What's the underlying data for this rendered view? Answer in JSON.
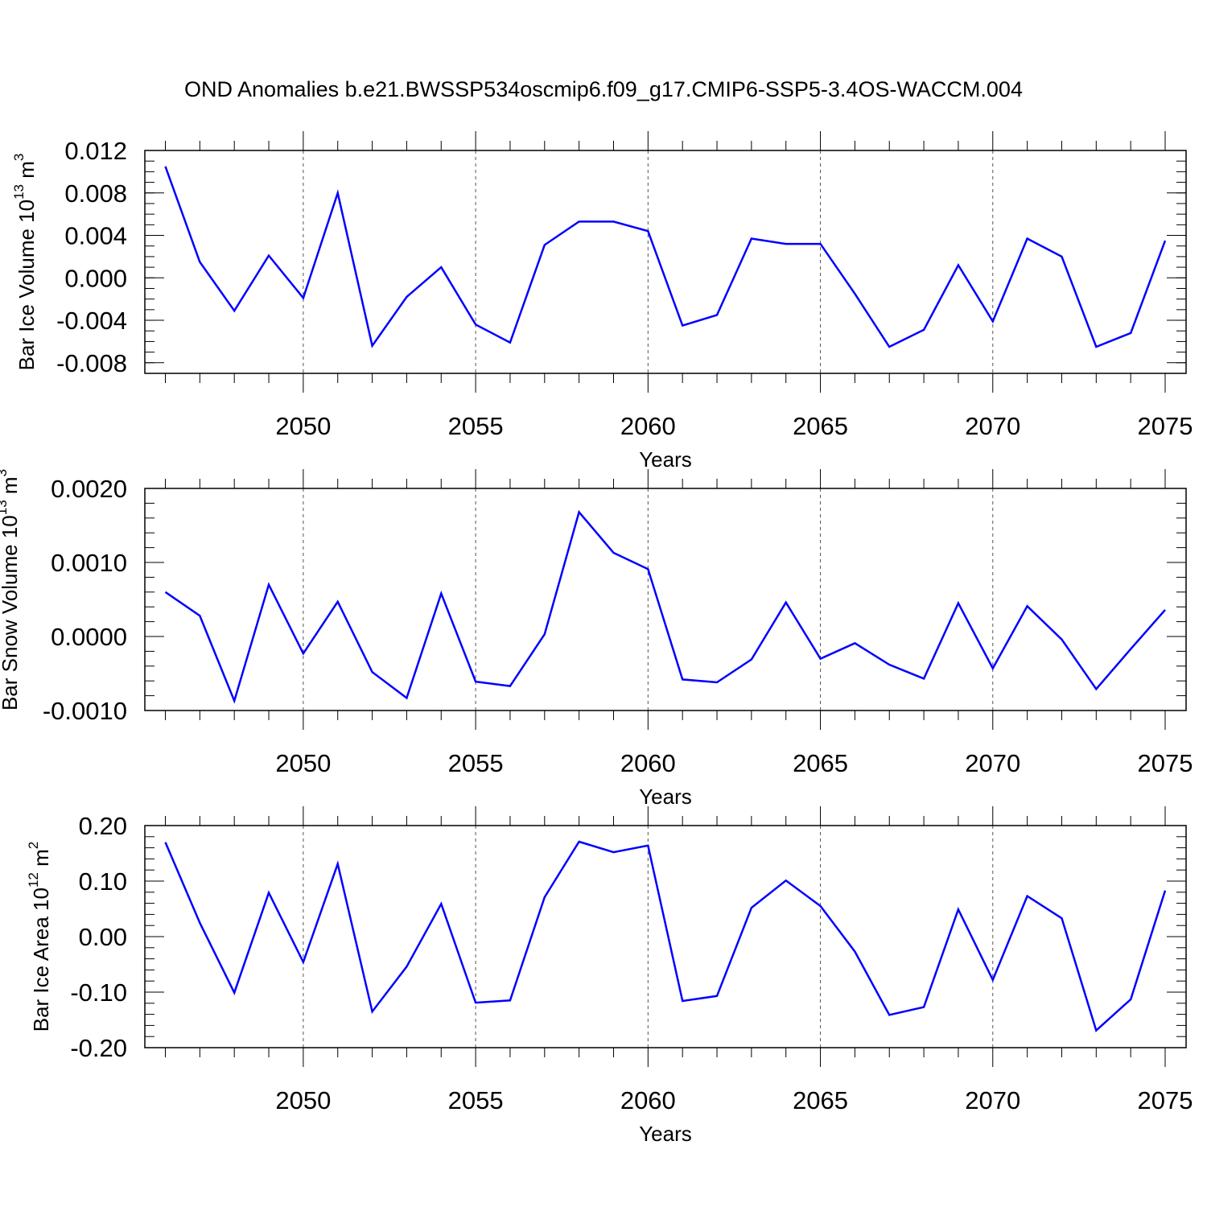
{
  "figure": {
    "title": "OND Anomalies b.e21.BWSSP534oscmip6.f09_g17.CMIP6-SSP5-3.4OS-WACCM.004",
    "line_color": "#0000ff"
  },
  "chart_data": [
    {
      "type": "line",
      "title": "",
      "xlabel": "Years",
      "ylabel": "Bar Ice Volume 10",
      "ylabel_exp": "13",
      "ylabel_unit": " m",
      "ylabel_unit_exp": "3",
      "xlim": [
        2046,
        2075
      ],
      "ylim": [
        -0.009,
        0.012
      ],
      "x_ticks": [
        2050,
        2055,
        2060,
        2065,
        2070,
        2075
      ],
      "x_tick_labels": [
        "2050",
        "2055",
        "2060",
        "2065",
        "2070",
        "2075"
      ],
      "y_ticks": [
        -0.008,
        -0.004,
        0.0,
        0.004,
        0.008,
        0.012
      ],
      "y_tick_labels": [
        "-0.008",
        "-0.004",
        "0.000",
        "0.004",
        "0.008",
        "0.012"
      ],
      "y_minor_step": 0.001,
      "grid": "vertical-dashed",
      "series": [
        {
          "name": "Bar Ice Volume",
          "x": [
            2046,
            2047,
            2048,
            2049,
            2050,
            2051,
            2052,
            2053,
            2054,
            2055,
            2056,
            2057,
            2058,
            2059,
            2060,
            2061,
            2062,
            2063,
            2064,
            2065,
            2066,
            2067,
            2068,
            2069,
            2070,
            2071,
            2072,
            2073,
            2074,
            2075
          ],
          "values": [
            0.0105,
            0.0015,
            -0.0031,
            0.0021,
            -0.0019,
            0.008,
            -0.0064,
            -0.0018,
            0.001,
            -0.0044,
            -0.0061,
            0.0031,
            0.0053,
            0.0053,
            0.0044,
            -0.0045,
            -0.0035,
            0.0037,
            0.0032,
            0.0032,
            -0.0015,
            -0.0065,
            -0.0049,
            0.0012,
            -0.0041,
            0.0037,
            0.002,
            -0.0065,
            -0.0052,
            0.0035
          ]
        }
      ]
    },
    {
      "type": "line",
      "title": "",
      "xlabel": "Years",
      "ylabel": "Bar Snow Volume 10",
      "ylabel_exp": "13",
      "ylabel_unit": " m",
      "ylabel_unit_exp": "3",
      "xlim": [
        2046,
        2075
      ],
      "ylim": [
        -0.001,
        0.002
      ],
      "x_ticks": [
        2050,
        2055,
        2060,
        2065,
        2070,
        2075
      ],
      "x_tick_labels": [
        "2050",
        "2055",
        "2060",
        "2065",
        "2070",
        "2075"
      ],
      "y_ticks": [
        -0.001,
        0.0,
        0.001,
        0.002
      ],
      "y_tick_labels": [
        "-0.0010",
        "0.0000",
        "0.0010",
        "0.0020"
      ],
      "y_minor_step": 0.0002,
      "grid": "vertical-dashed",
      "series": [
        {
          "name": "Bar Snow Volume",
          "x": [
            2046,
            2047,
            2048,
            2049,
            2050,
            2051,
            2052,
            2053,
            2054,
            2055,
            2056,
            2057,
            2058,
            2059,
            2060,
            2061,
            2062,
            2063,
            2064,
            2065,
            2066,
            2067,
            2068,
            2069,
            2070,
            2071,
            2072,
            2073,
            2074,
            2075
          ],
          "values": [
            0.0006,
            0.00028,
            -0.00087,
            0.0007,
            -0.00023,
            0.00047,
            -0.00048,
            -0.00083,
            0.00058,
            -0.00061,
            -0.00067,
            3e-05,
            0.00168,
            0.00113,
            0.00091,
            -0.00058,
            -0.00062,
            -0.00031,
            0.00046,
            -0.0003,
            -9e-05,
            -0.00038,
            -0.00057,
            0.00045,
            -0.00043,
            0.00041,
            -4e-05,
            -0.00071,
            -0.00017,
            0.00036
          ]
        }
      ]
    },
    {
      "type": "line",
      "title": "",
      "xlabel": "Years",
      "ylabel": "Bar Ice Area 10",
      "ylabel_exp": "12",
      "ylabel_unit": " m",
      "ylabel_unit_exp": "2",
      "xlim": [
        2046,
        2075
      ],
      "ylim": [
        -0.2,
        0.2
      ],
      "x_ticks": [
        2050,
        2055,
        2060,
        2065,
        2070,
        2075
      ],
      "x_tick_labels": [
        "2050",
        "2055",
        "2060",
        "2065",
        "2070",
        "2075"
      ],
      "y_ticks": [
        -0.2,
        -0.1,
        0.0,
        0.1,
        0.2
      ],
      "y_tick_labels": [
        "-0.20",
        "-0.10",
        "0.00",
        "0.10",
        "0.20"
      ],
      "y_minor_step": 0.02,
      "grid": "vertical-dashed",
      "series": [
        {
          "name": "Bar Ice Area",
          "x": [
            2046,
            2047,
            2048,
            2049,
            2050,
            2051,
            2052,
            2053,
            2054,
            2055,
            2056,
            2057,
            2058,
            2059,
            2060,
            2061,
            2062,
            2063,
            2064,
            2065,
            2066,
            2067,
            2068,
            2069,
            2070,
            2071,
            2072,
            2073,
            2074,
            2075
          ],
          "values": [
            0.17,
            0.025,
            -0.101,
            0.079,
            -0.046,
            0.131,
            -0.135,
            -0.054,
            0.059,
            -0.119,
            -0.115,
            0.071,
            0.171,
            0.152,
            0.164,
            -0.116,
            -0.107,
            0.052,
            0.101,
            0.055,
            -0.027,
            -0.141,
            -0.127,
            0.049,
            -0.078,
            0.073,
            0.033,
            -0.169,
            -0.113,
            0.083
          ]
        }
      ]
    }
  ]
}
